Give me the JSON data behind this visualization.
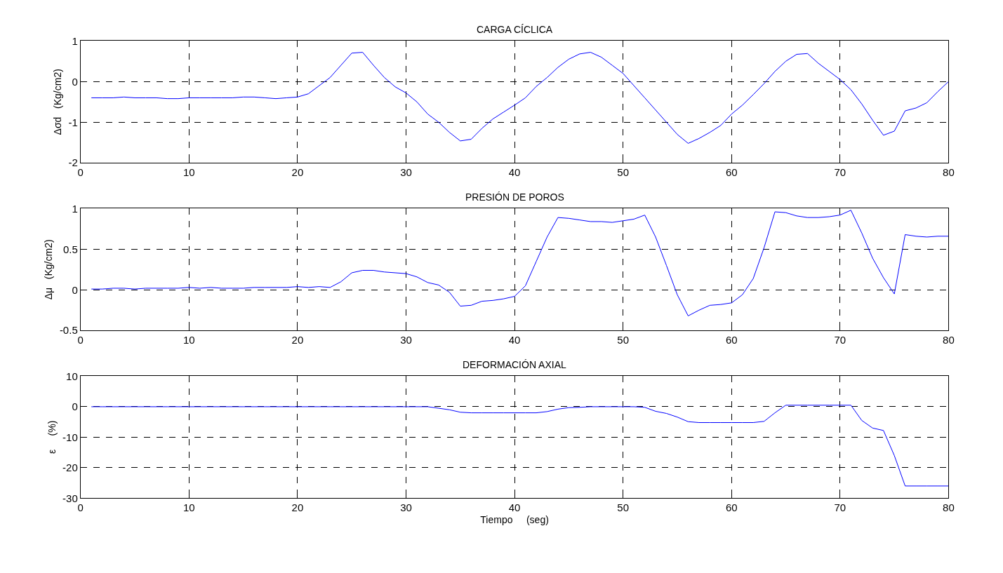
{
  "chart_data": [
    {
      "type": "line",
      "title": "CARGA CÍCLICA",
      "ylabel": "Δσd   (Kg/cm2)",
      "color": "#0000ff",
      "grid": true,
      "line_style": "solid",
      "xlim": [
        0,
        80
      ],
      "xticks": [
        0,
        10,
        20,
        30,
        40,
        50,
        60,
        70,
        80
      ],
      "ylim": [
        -2,
        1
      ],
      "yticks": [
        -2,
        -1,
        0,
        1
      ],
      "x": [
        1,
        2,
        3,
        4,
        5,
        6,
        7,
        8,
        9,
        10,
        11,
        12,
        13,
        14,
        15,
        16,
        17,
        18,
        19,
        20,
        21,
        22,
        23,
        24,
        25,
        26,
        27,
        28,
        29,
        30,
        31,
        32,
        33,
        34,
        35,
        36,
        37,
        38,
        39,
        40,
        41,
        42,
        43,
        44,
        45,
        46,
        47,
        48,
        49,
        50,
        51,
        52,
        53,
        54,
        55,
        56,
        57,
        58,
        59,
        60,
        61,
        62,
        63,
        64,
        65,
        66,
        67,
        68,
        69,
        70,
        71,
        72,
        73,
        74,
        75,
        76,
        77,
        78,
        79,
        80
      ],
      "values": [
        -0.4,
        -0.4,
        -0.4,
        -0.38,
        -0.4,
        -0.4,
        -0.4,
        -0.42,
        -0.42,
        -0.4,
        -0.4,
        -0.4,
        -0.4,
        -0.4,
        -0.38,
        -0.38,
        -0.4,
        -0.42,
        -0.4,
        -0.38,
        -0.3,
        -0.1,
        0.1,
        0.4,
        0.7,
        0.72,
        0.4,
        0.1,
        -0.13,
        -0.28,
        -0.5,
        -0.8,
        -1.0,
        -1.25,
        -1.46,
        -1.42,
        -1.15,
        -0.92,
        -0.75,
        -0.58,
        -0.4,
        -0.12,
        0.1,
        0.35,
        0.55,
        0.68,
        0.72,
        0.6,
        0.4,
        0.2,
        -0.1,
        -0.4,
        -0.7,
        -1.0,
        -1.3,
        -1.52,
        -1.4,
        -1.25,
        -1.08,
        -0.8,
        -0.58,
        -0.32,
        -0.05,
        0.25,
        0.5,
        0.67,
        0.69,
        0.45,
        0.25,
        0.05,
        -0.2,
        -0.55,
        -0.95,
        -1.32,
        -1.22,
        -0.72,
        -0.65,
        -0.52,
        -0.25,
        0.0
      ]
    },
    {
      "type": "line",
      "title": "PRESIÓN DE POROS",
      "ylabel": "Δμ   (Kg/cm2)",
      "color": "#0000ff",
      "grid": true,
      "line_style": "solid",
      "xlim": [
        0,
        80
      ],
      "xticks": [
        0,
        10,
        20,
        30,
        40,
        50,
        60,
        70,
        80
      ],
      "ylim": [
        -0.5,
        1
      ],
      "yticks": [
        -0.5,
        0,
        0.5,
        1
      ],
      "x": [
        1,
        2,
        3,
        4,
        5,
        6,
        7,
        8,
        9,
        10,
        11,
        12,
        13,
        14,
        15,
        16,
        17,
        18,
        19,
        20,
        21,
        22,
        23,
        24,
        25,
        26,
        27,
        28,
        29,
        30,
        31,
        32,
        33,
        34,
        35,
        36,
        37,
        38,
        39,
        40,
        41,
        42,
        43,
        44,
        45,
        46,
        47,
        48,
        49,
        50,
        51,
        52,
        53,
        54,
        55,
        56,
        57,
        58,
        59,
        60,
        61,
        62,
        63,
        64,
        65,
        66,
        67,
        68,
        69,
        70,
        71,
        72,
        73,
        74,
        75,
        76,
        77,
        78,
        79,
        80
      ],
      "values": [
        0.01,
        0.01,
        0.02,
        0.02,
        0.01,
        0.02,
        0.02,
        0.02,
        0.02,
        0.03,
        0.02,
        0.03,
        0.02,
        0.02,
        0.02,
        0.03,
        0.03,
        0.03,
        0.03,
        0.04,
        0.03,
        0.04,
        0.03,
        0.1,
        0.21,
        0.24,
        0.24,
        0.22,
        0.21,
        0.2,
        0.16,
        0.09,
        0.06,
        -0.03,
        -0.2,
        -0.19,
        -0.14,
        -0.13,
        -0.11,
        -0.08,
        0.05,
        0.35,
        0.65,
        0.89,
        0.88,
        0.86,
        0.84,
        0.84,
        0.83,
        0.85,
        0.87,
        0.92,
        0.65,
        0.3,
        -0.06,
        -0.32,
        -0.25,
        -0.19,
        -0.18,
        -0.16,
        -0.06,
        0.14,
        0.52,
        0.96,
        0.95,
        0.91,
        0.89,
        0.89,
        0.9,
        0.92,
        0.98,
        0.7,
        0.39,
        0.15,
        -0.05,
        0.68,
        0.66,
        0.65,
        0.66,
        0.66
      ]
    },
    {
      "type": "line",
      "title": "DEFORMACIÓN AXIAL",
      "xlabel": "Tiempo     (seg)",
      "ylabel": "ε     (%)",
      "color": "#0000ff",
      "grid": true,
      "line_style": "solid",
      "xlim": [
        0,
        80
      ],
      "xticks": [
        0,
        10,
        20,
        30,
        40,
        50,
        60,
        70,
        80
      ],
      "ylim": [
        -30,
        10
      ],
      "yticks": [
        -30,
        -20,
        -10,
        0,
        10
      ],
      "x": [
        1,
        2,
        3,
        4,
        5,
        6,
        7,
        8,
        9,
        10,
        11,
        12,
        13,
        14,
        15,
        16,
        17,
        18,
        19,
        20,
        21,
        22,
        23,
        24,
        25,
        26,
        27,
        28,
        29,
        30,
        31,
        32,
        33,
        34,
        35,
        36,
        37,
        38,
        39,
        40,
        41,
        42,
        43,
        44,
        45,
        46,
        47,
        48,
        49,
        50,
        51,
        52,
        53,
        54,
        55,
        56,
        57,
        58,
        59,
        60,
        61,
        62,
        63,
        64,
        65,
        66,
        67,
        68,
        69,
        70,
        71,
        72,
        73,
        74,
        75,
        76,
        77,
        78,
        79,
        80
      ],
      "values": [
        0,
        0,
        0,
        0,
        0,
        0,
        0,
        0,
        0,
        0,
        0,
        0,
        0,
        0,
        0,
        0,
        0,
        0,
        0,
        0,
        0,
        0,
        0,
        0,
        0,
        0,
        0,
        0,
        0,
        0,
        0,
        0,
        -0.5,
        -1,
        -1.8,
        -2,
        -2,
        -2,
        -2,
        -2,
        -2,
        -2,
        -1.6,
        -0.8,
        -0.3,
        -0.2,
        0,
        0,
        0,
        0,
        0,
        -0.2,
        -1.5,
        -2.2,
        -3.4,
        -4.9,
        -5.2,
        -5.2,
        -5.2,
        -5.2,
        -5.2,
        -5.2,
        -4.8,
        -2,
        0.5,
        0.5,
        0.5,
        0.5,
        0.5,
        0.5,
        0.5,
        -4.5,
        -7,
        -7.8,
        -16,
        -26,
        -26,
        -26,
        -26,
        -26
      ]
    }
  ]
}
